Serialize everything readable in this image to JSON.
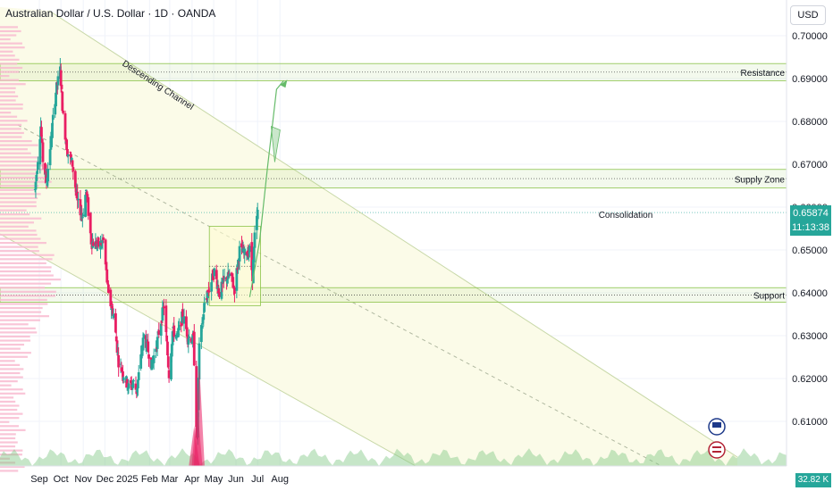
{
  "header": {
    "title": "Australian Dollar / U.S. Dollar · 1D · OANDA",
    "currency_button": "USD"
  },
  "price_tag": {
    "price": "0.65874",
    "countdown": "11:13:38"
  },
  "volume_tag": "32.82 K",
  "colors": {
    "up": "#26a69a",
    "down": "#e91e63",
    "zone": "#8bc34a",
    "channel": "#c8d8a8",
    "profile": "#f8bbd0"
  },
  "chart_data": {
    "type": "candlestick",
    "title": "Australian Dollar / U.S. Dollar · 1D · OANDA",
    "x_ticks": [
      "Sep",
      "Oct",
      "Nov",
      "Dec",
      "2025",
      "Feb",
      "Mar",
      "Apr",
      "May",
      "Jun",
      "Jul",
      "Aug"
    ],
    "y_ticks": [
      0.7,
      0.69,
      0.68,
      0.67,
      0.66,
      0.65,
      0.64,
      0.63,
      0.62,
      0.61
    ],
    "ylim": [
      0.6015,
      0.7048
    ],
    "annotations": {
      "resistance": {
        "label": "Resistance",
        "range": [
          0.6895,
          0.6935
        ]
      },
      "supply_zone": {
        "label": "Supply Zone",
        "range": [
          0.6645,
          0.6688
        ]
      },
      "support": {
        "label": "Support",
        "range": [
          0.6378,
          0.6412
        ]
      },
      "consolidation": {
        "label": "Consolidation",
        "range": [
          0.637,
          0.6555
        ]
      },
      "channel": {
        "label": "Descending Channel"
      }
    },
    "last_price": 0.65874,
    "path": [
      [
        "2024-08-26",
        0.664
      ],
      [
        "2024-09-03",
        0.679
      ],
      [
        "2024-09-06",
        0.671
      ],
      [
        "2024-09-11",
        0.666
      ],
      [
        "2024-09-16",
        0.674
      ],
      [
        "2024-09-24",
        0.687
      ],
      [
        "2024-09-30",
        0.692
      ],
      [
        "2024-10-04",
        0.681
      ],
      [
        "2024-10-10",
        0.673
      ],
      [
        "2024-10-17",
        0.67
      ],
      [
        "2024-10-24",
        0.661
      ],
      [
        "2024-10-31",
        0.658
      ],
      [
        "2024-11-05",
        0.664
      ],
      [
        "2024-11-12",
        0.652
      ],
      [
        "2024-11-22",
        0.651
      ],
      [
        "2024-11-29",
        0.652
      ],
      [
        "2024-12-06",
        0.639
      ],
      [
        "2024-12-13",
        0.635
      ],
      [
        "2024-12-20",
        0.624
      ],
      [
        "2024-12-27",
        0.621
      ],
      [
        "2025-01-03",
        0.618
      ],
      [
        "2025-01-10",
        0.619
      ],
      [
        "2025-01-14",
        0.617
      ],
      [
        "2025-01-24",
        0.63
      ],
      [
        "2025-01-31",
        0.626
      ],
      [
        "2025-02-04",
        0.623
      ],
      [
        "2025-02-12",
        0.629
      ],
      [
        "2025-02-21",
        0.637
      ],
      [
        "2025-02-28",
        0.621
      ],
      [
        "2025-03-05",
        0.631
      ],
      [
        "2025-03-12",
        0.63
      ],
      [
        "2025-03-19",
        0.635
      ],
      [
        "2025-03-26",
        0.63
      ],
      [
        "2025-04-03",
        0.629
      ],
      [
        "2025-04-08",
        0.605
      ],
      [
        "2025-04-11",
        0.627
      ],
      [
        "2025-04-18",
        0.637
      ],
      [
        "2025-04-25",
        0.641
      ],
      [
        "2025-05-02",
        0.645
      ],
      [
        "2025-05-09",
        0.64
      ],
      [
        "2025-05-16",
        0.643
      ],
      [
        "2025-05-23",
        0.644
      ],
      [
        "2025-05-30",
        0.641
      ],
      [
        "2025-06-06",
        0.65
      ],
      [
        "2025-06-13",
        0.649
      ],
      [
        "2025-06-20",
        0.65
      ],
      [
        "2025-06-24",
        0.644
      ],
      [
        "2025-06-27",
        0.653
      ],
      [
        "2025-07-01",
        0.6587
      ]
    ]
  }
}
